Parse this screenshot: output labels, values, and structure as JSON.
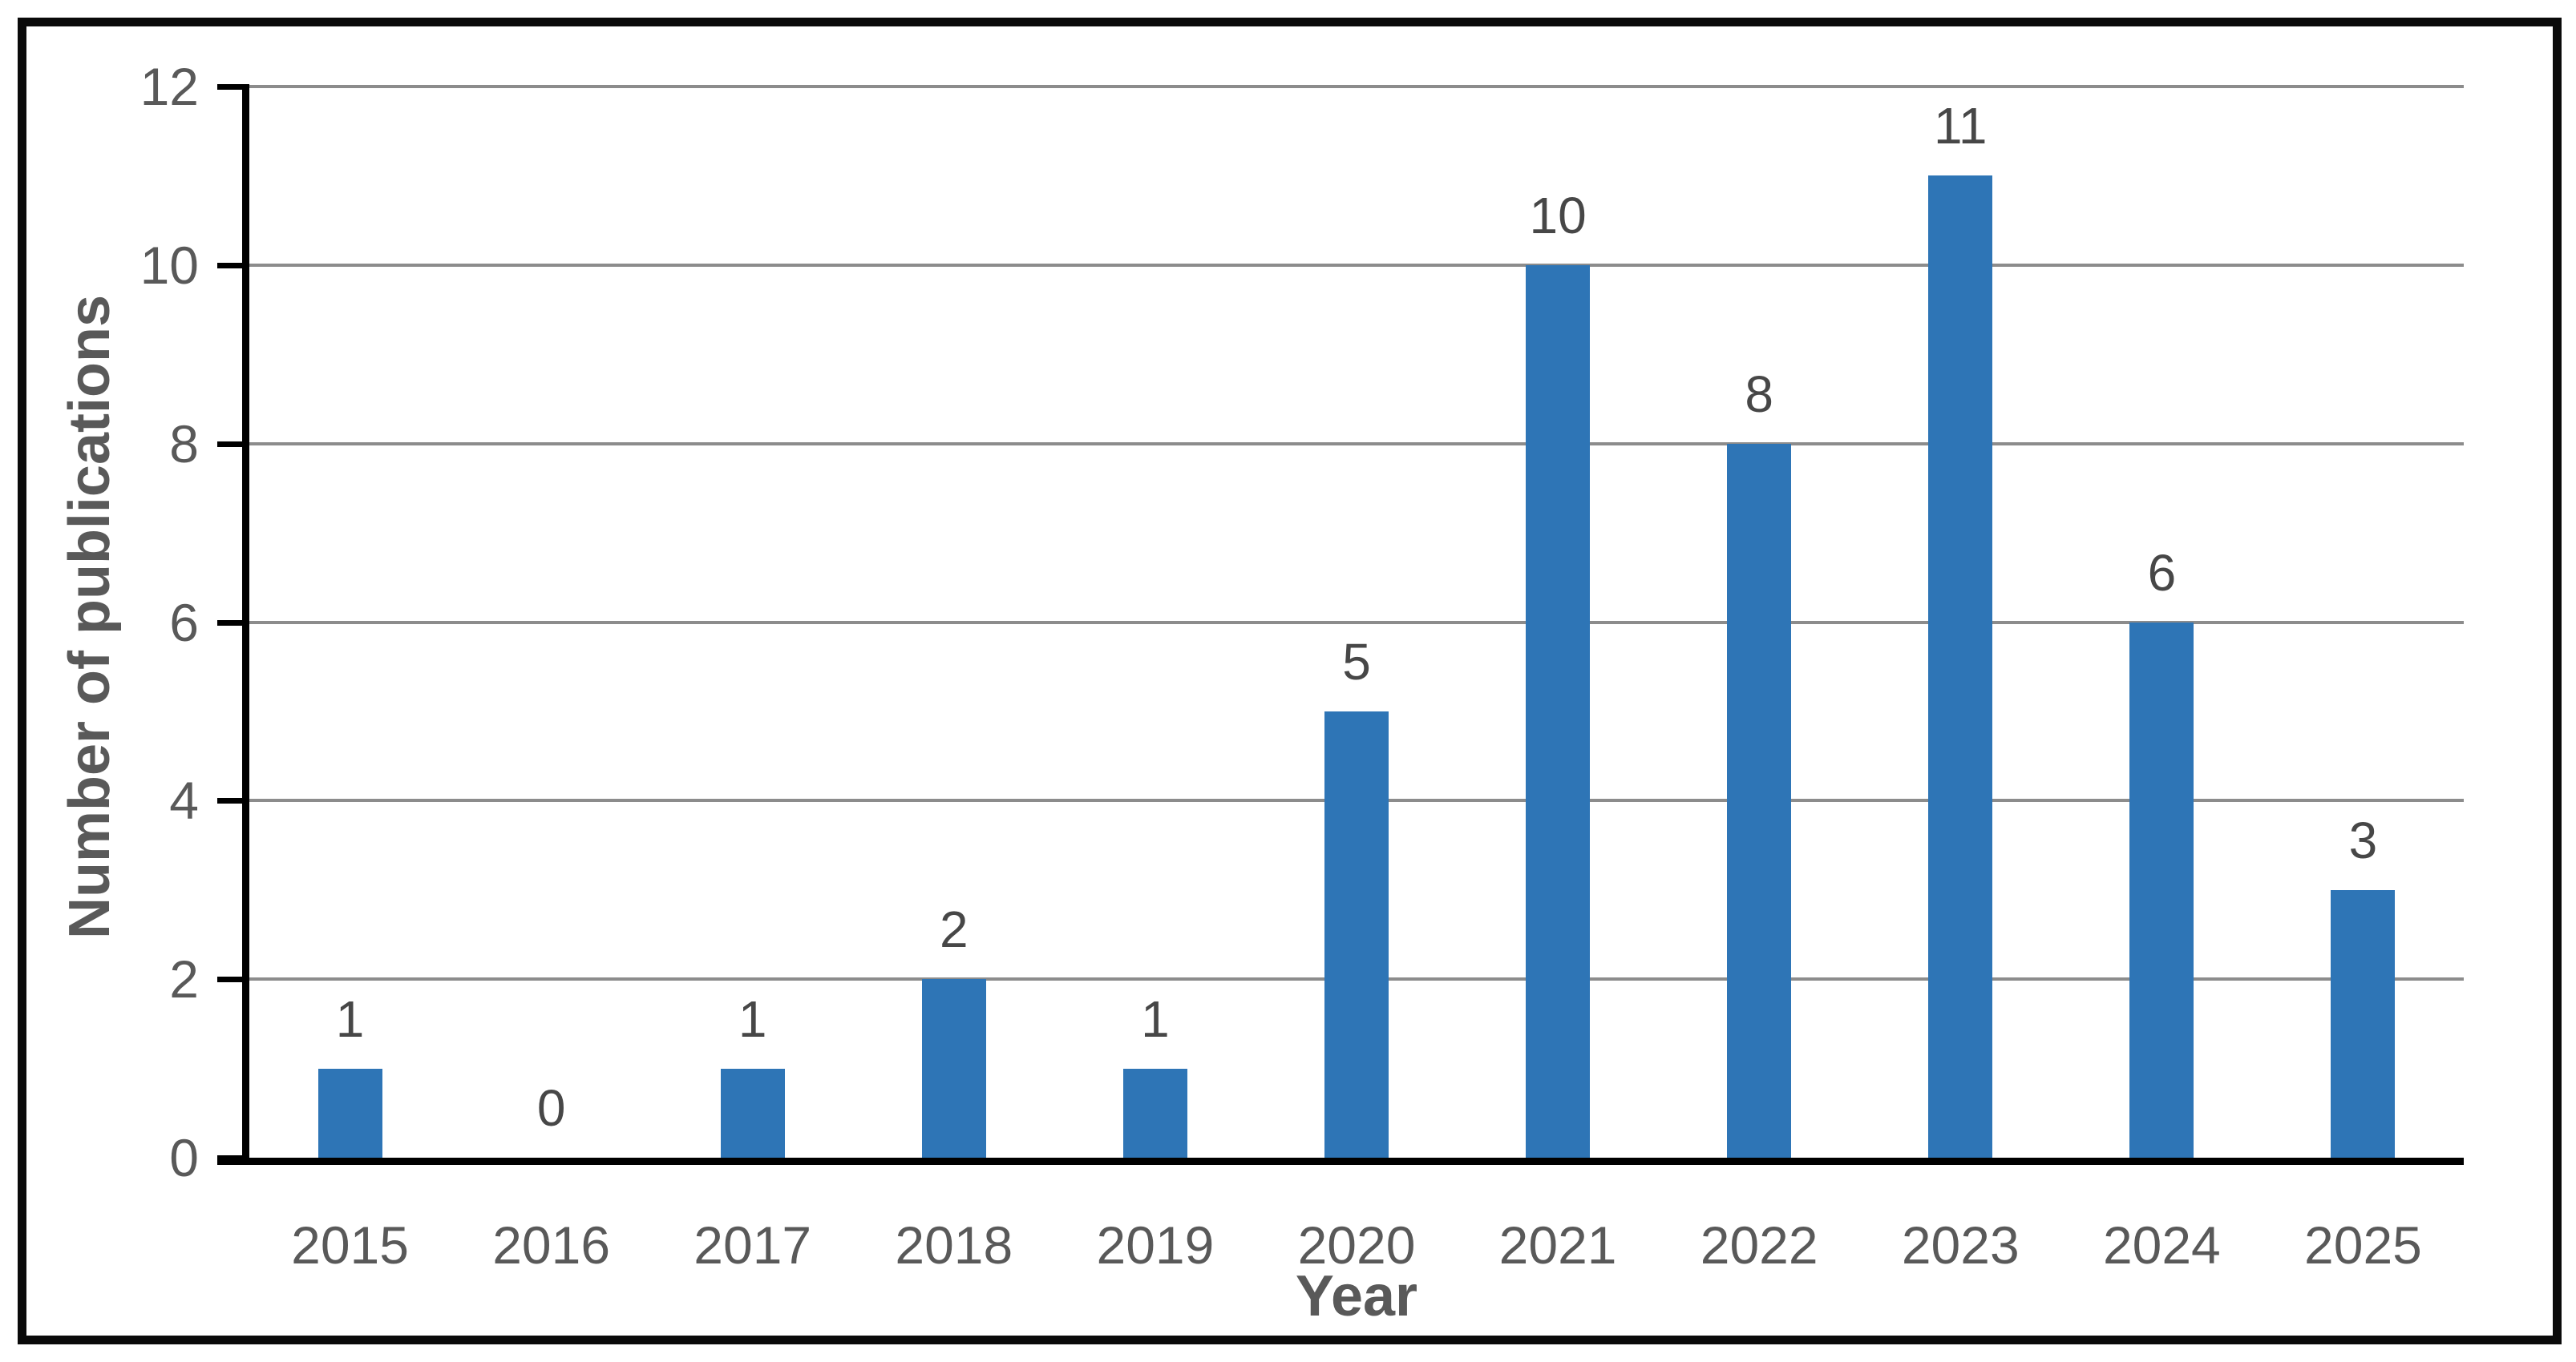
{
  "chart_data": {
    "type": "bar",
    "title": "",
    "xlabel": "Year",
    "ylabel": "Number of publications",
    "categories": [
      "2015",
      "2016",
      "2017",
      "2018",
      "2019",
      "2020",
      "2021",
      "2022",
      "2023",
      "2024",
      "2025"
    ],
    "values": [
      1,
      0,
      1,
      2,
      1,
      5,
      10,
      8,
      11,
      6,
      3
    ],
    "data_labels": [
      "1",
      "0",
      "1",
      "2",
      "1",
      "5",
      "10",
      "8",
      "11",
      "6",
      "3"
    ],
    "y_ticks": [
      0,
      2,
      4,
      6,
      8,
      10,
      12
    ],
    "ylim": [
      0,
      12
    ],
    "grid": "horizontal",
    "legend_position": "none",
    "bar_color": "#2E75B6",
    "gridline_color": "#8C8C8C",
    "axis_color": "#000000",
    "text_color": "#595959",
    "border_color": "#0A0A0A"
  }
}
